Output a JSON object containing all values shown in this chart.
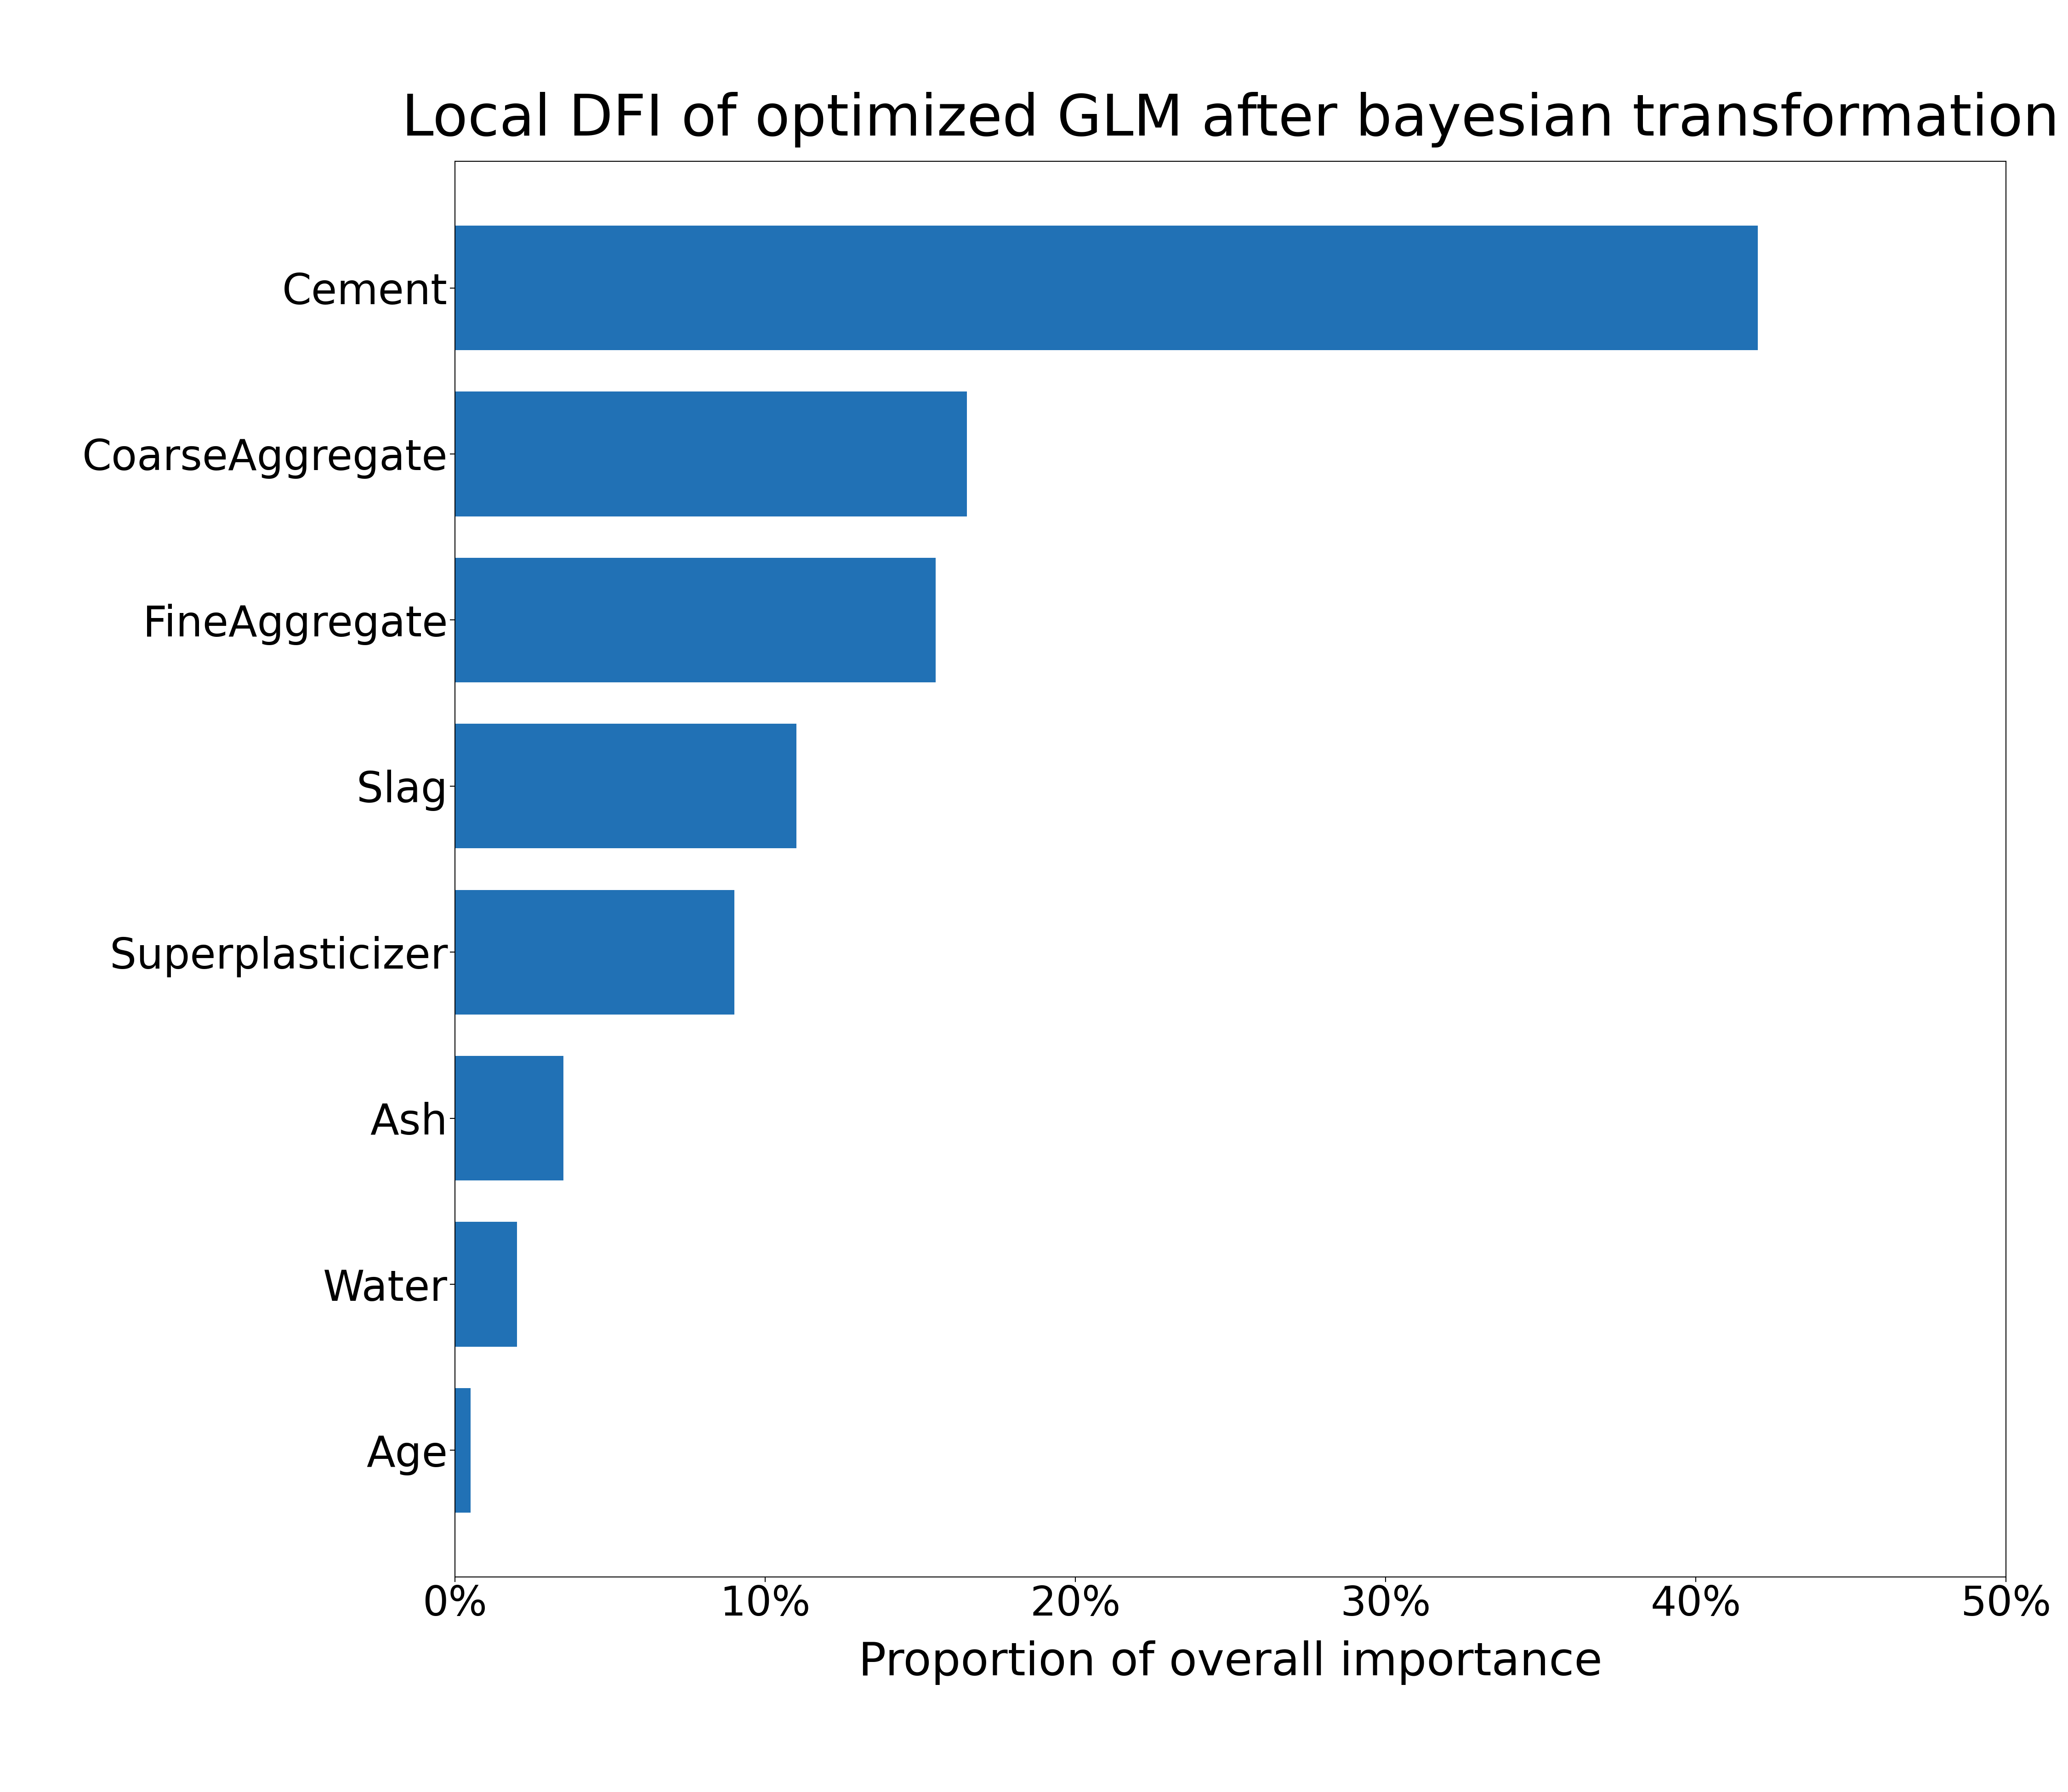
{
  "title": "Local DFI of optimized GLM after bayesian transformation",
  "categories": [
    "Cement",
    "CoarseAggregate",
    "FineAggregate",
    "Slag",
    "Superplasticizer",
    "Ash",
    "Water",
    "Age"
  ],
  "values": [
    0.42,
    0.165,
    0.155,
    0.11,
    0.09,
    0.035,
    0.02,
    0.005
  ],
  "bar_color": "#2171b5",
  "xlabel": "Proportion of overall importance",
  "xlim": [
    0,
    0.5
  ],
  "xtick_values": [
    0.0,
    0.1,
    0.2,
    0.3,
    0.4,
    0.5
  ],
  "xtick_labels": [
    "0%",
    "10%",
    "20%",
    "30%",
    "40%",
    "50%"
  ],
  "title_fontsize": 90,
  "label_fontsize": 72,
  "tick_fontsize": 64,
  "ytick_fontsize": 66,
  "background_color": "#ffffff",
  "bar_height": 0.75
}
